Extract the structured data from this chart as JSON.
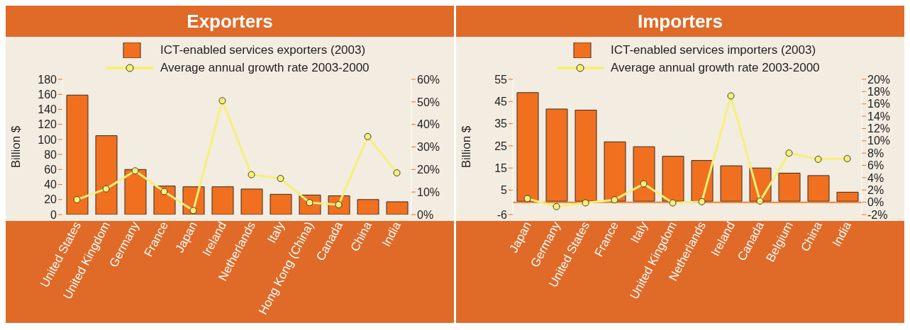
{
  "chart_data": [
    {
      "type": "bar",
      "title": "Exporters",
      "ylabel": "Billion $",
      "legend": "top",
      "categories": [
        "United States",
        "United Kingdom",
        "Germany",
        "France",
        "Japan",
        "Ireland",
        "Netherlands",
        "Italy",
        "Hong Kong (China)",
        "Canada",
        "China",
        "India"
      ],
      "series": [
        {
          "name": "ICT-enabled services exporters (2003)",
          "color": "#f07020",
          "values": [
            159,
            105,
            60,
            38,
            37,
            37,
            34,
            27,
            26,
            25,
            20,
            17
          ]
        },
        {
          "name": "Average annual growth rate 2003-2000",
          "type": "line",
          "axis": "y2",
          "color": "#f5f07a",
          "values": [
            6.6,
            11.4,
            19.4,
            10.2,
            1.8,
            50.5,
            17.7,
            16,
            5.3,
            4.4,
            34.6,
            18.5
          ]
        }
      ],
      "ylim": [
        0,
        180
      ],
      "yticks": [
        0,
        20,
        40,
        60,
        80,
        100,
        120,
        140,
        160,
        180
      ],
      "y2lim": [
        0,
        60
      ],
      "y2ticks": [
        {
          "value": 0,
          "label": "0%"
        },
        {
          "value": 10,
          "label": "10%"
        },
        {
          "value": 20,
          "label": "20%"
        },
        {
          "value": 30,
          "label": "30%"
        },
        {
          "value": 40,
          "label": "40%"
        },
        {
          "value": 50,
          "label": "50%"
        },
        {
          "value": 60,
          "label": "60%"
        }
      ],
      "marker": "circle",
      "grid": false
    },
    {
      "type": "bar",
      "title": "Importers",
      "ylabel": "Billion $",
      "legend": "top",
      "categories": [
        "Japan",
        "Germany",
        "United States",
        "France",
        "Italy",
        "United Kingdom",
        "Netherlands",
        "Ireland",
        "Canada",
        "Belgium",
        "China",
        "India"
      ],
      "series": [
        {
          "name": "ICT-enabled services importers (2003)",
          "color": "#f07020",
          "values": [
            49,
            41.6,
            41.1,
            26.8,
            24.6,
            20.3,
            18.4,
            16,
            15,
            12.7,
            11.6,
            4.1
          ]
        },
        {
          "name": "Average annual growth rate 2003-2000",
          "type": "line",
          "axis": "y2",
          "color": "#f5f07a",
          "values": [
            0.6,
            -0.7,
            -0.1,
            0.4,
            3,
            -0.1,
            0.1,
            17.3,
            0.2,
            8,
            7,
            7.1
          ]
        }
      ],
      "ylim": [
        -6,
        55
      ],
      "yticks": [
        -6,
        5,
        15,
        25,
        35,
        45,
        55
      ],
      "y2lim": [
        -2,
        20
      ],
      "y2ticks": [
        {
          "value": -2,
          "label": "-2%"
        },
        {
          "value": 0,
          "label": "0%"
        },
        {
          "value": 2,
          "label": "2%"
        },
        {
          "value": 4,
          "label": "4%"
        },
        {
          "value": 6,
          "label": "6%"
        },
        {
          "value": 8,
          "label": "8%"
        },
        {
          "value": 10,
          "label": "10%"
        },
        {
          "value": 12,
          "label": "12%"
        },
        {
          "value": 14,
          "label": "14%"
        },
        {
          "value": 16,
          "label": "16%"
        },
        {
          "value": 18,
          "label": "18%"
        },
        {
          "value": 20,
          "label": "20%"
        }
      ],
      "ref_lines": [
        {
          "axis": "y2",
          "value": 0,
          "color": "#f08030"
        }
      ],
      "marker": "circle",
      "grid": false
    }
  ]
}
